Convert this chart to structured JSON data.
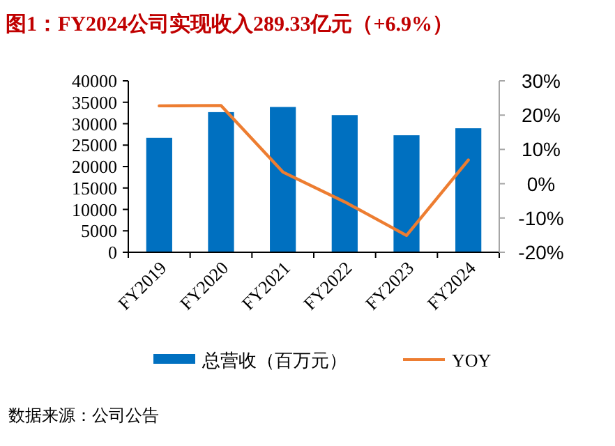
{
  "chart_data": {
    "type": "bar",
    "title": "图1：FY2024公司实现收入289.33亿元（+6.9%）",
    "categories": [
      "FY2019",
      "FY2020",
      "FY2021",
      "FY2022",
      "FY2023",
      "FY2024"
    ],
    "series": [
      {
        "name": "总营收（百万元）",
        "color": "#0070c0",
        "values": [
          26700,
          32700,
          33900,
          32000,
          27300,
          28933
        ]
      },
      {
        "name": "YOY",
        "type": "line",
        "axis": "y2",
        "color": "#ed7d31",
        "values": [
          22.7,
          22.8,
          3.4,
          -5.3,
          -15.1,
          6.9
        ]
      }
    ],
    "ylim": [
      0,
      40000
    ],
    "yticks": [
      0,
      5000,
      10000,
      15000,
      20000,
      25000,
      30000,
      35000,
      40000
    ],
    "y2lim": [
      -20,
      30
    ],
    "y2ticks": [
      {
        "value": -20,
        "label": "-20%"
      },
      {
        "value": -10,
        "label": "-10%"
      },
      {
        "value": 0,
        "label": "0%"
      },
      {
        "value": 10,
        "label": "10%"
      },
      {
        "value": 20,
        "label": "20%"
      },
      {
        "value": 30,
        "label": "30%"
      }
    ],
    "legend": "bottom",
    "annotations": [
      "数据来源：公司公告"
    ]
  }
}
